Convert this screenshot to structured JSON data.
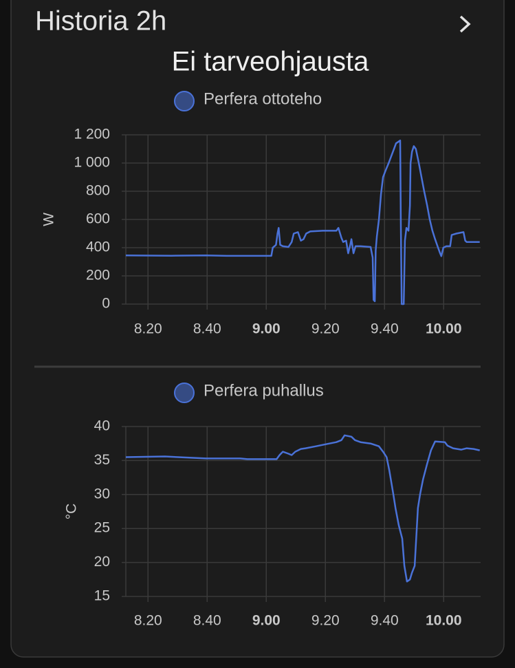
{
  "header": {
    "title": "Historia 2h",
    "subtitle": "Ei tarveohjausta"
  },
  "chart_data": [
    {
      "type": "line",
      "y_label": "W",
      "grid": true,
      "xlim": [
        492.5,
        612.5
      ],
      "xticks": [
        {
          "value": 500,
          "label": "8.20"
        },
        {
          "value": 520,
          "label": "8.40"
        },
        {
          "value": 540,
          "label": "9.00"
        },
        {
          "value": 560,
          "label": "9.20"
        },
        {
          "value": 580,
          "label": "9.40"
        },
        {
          "value": 600,
          "label": "10.00"
        }
      ],
      "ylim": [
        0,
        1200
      ],
      "yticks": [
        0,
        200,
        400,
        600,
        800,
        {
          "value": 1000,
          "label": "1 000"
        },
        {
          "value": 1200,
          "label": "1 200"
        }
      ],
      "x": [
        492.5,
        508,
        519.6,
        526.6,
        541.7,
        542.2,
        543.3,
        543.8,
        544.2,
        544.7,
        545.6,
        547.5,
        548.6,
        549.3,
        550.7,
        551.7,
        552.6,
        553.5,
        554.9,
        559.1,
        563.7,
        564.4,
        565.4,
        566.0,
        567.0,
        567.7,
        568.4,
        568.8,
        569.5,
        570.2,
        571.9,
        575.3,
        576.0,
        576.3,
        576.7,
        577.0,
        577.4,
        578.1,
        578.8,
        579.5,
        580.4,
        581.4,
        582.3,
        583.2,
        583.9,
        584.6,
        585.3,
        585.5,
        585.8,
        586.5,
        586.9,
        587.4,
        588.1,
        588.6,
        588.8,
        589.3,
        589.9,
        590.6,
        591.6,
        592.5,
        593.4,
        594.4,
        595.3,
        596.2,
        597.1,
        598.1,
        598.8,
        599.2,
        599.9,
        600.9,
        602.2,
        602.7,
        604.3,
        606.7,
        607.3,
        607.8,
        612.2
      ],
      "series": [
        {
          "name": "Perfera ottoteho",
          "color": "#4a72d8",
          "values": [
            345,
            343,
            345,
            342,
            342,
            400,
            420,
            500,
            540,
            420,
            410,
            405,
            440,
            500,
            510,
            450,
            460,
            500,
            515,
            520,
            520,
            540,
            470,
            440,
            450,
            360,
            420,
            460,
            360,
            410,
            410,
            405,
            330,
            30,
            20,
            380,
            480,
            600,
            780,
            900,
            950,
            1000,
            1050,
            1100,
            1140,
            1150,
            1160,
            600,
            0,
            0,
            450,
            540,
            520,
            700,
            1000,
            1080,
            1120,
            1100,
            1000,
            900,
            800,
            700,
            600,
            520,
            460,
            400,
            360,
            340,
            400,
            410,
            410,
            490,
            500,
            510,
            450,
            440,
            440
          ]
        }
      ]
    },
    {
      "type": "line",
      "y_label": "°C",
      "grid": true,
      "xlim": [
        492.5,
        612.5
      ],
      "xticks": [
        {
          "value": 500,
          "label": "8.20"
        },
        {
          "value": 520,
          "label": "8.40"
        },
        {
          "value": 540,
          "label": "9.00"
        },
        {
          "value": 560,
          "label": "9.20"
        },
        {
          "value": 580,
          "label": "9.40"
        },
        {
          "value": 600,
          "label": "10.00"
        }
      ],
      "ylim": [
        15,
        40
      ],
      "yticks": [
        15,
        20,
        25,
        30,
        35,
        40
      ],
      "x": [
        492.5,
        505.7,
        519.6,
        531.2,
        533.6,
        543.5,
        544.5,
        545.6,
        547.5,
        548.6,
        549.8,
        551.7,
        553.3,
        556.8,
        560.2,
        563.7,
        565.4,
        566.5,
        568.8,
        570.0,
        571.9,
        575.3,
        578.1,
        579.5,
        580.7,
        581.6,
        583.0,
        583.7,
        584.8,
        586.0,
        586.7,
        587.6,
        588.6,
        589.3,
        590.2,
        591.3,
        592.0,
        593.0,
        594.4,
        595.7,
        597.1,
        600.4,
        601.3,
        603.2,
        606.0,
        607.8,
        610.1,
        612.2
      ],
      "series": [
        {
          "name": "Perfera puhallus",
          "color": "#4a72d8",
          "values": [
            35.5,
            35.6,
            35.3,
            35.3,
            35.2,
            35.2,
            35.8,
            36.3,
            36.0,
            35.8,
            36.3,
            36.7,
            36.8,
            37.1,
            37.4,
            37.7,
            38.0,
            38.7,
            38.5,
            38.0,
            37.7,
            37.5,
            37.1,
            36.3,
            35.5,
            33.6,
            30.0,
            28.0,
            25.5,
            23.5,
            19.5,
            17.2,
            17.5,
            18.5,
            19.5,
            28.0,
            30.0,
            32.2,
            34.5,
            36.5,
            37.8,
            37.7,
            37.2,
            36.8,
            36.6,
            36.8,
            36.7,
            36.5
          ]
        }
      ]
    }
  ]
}
